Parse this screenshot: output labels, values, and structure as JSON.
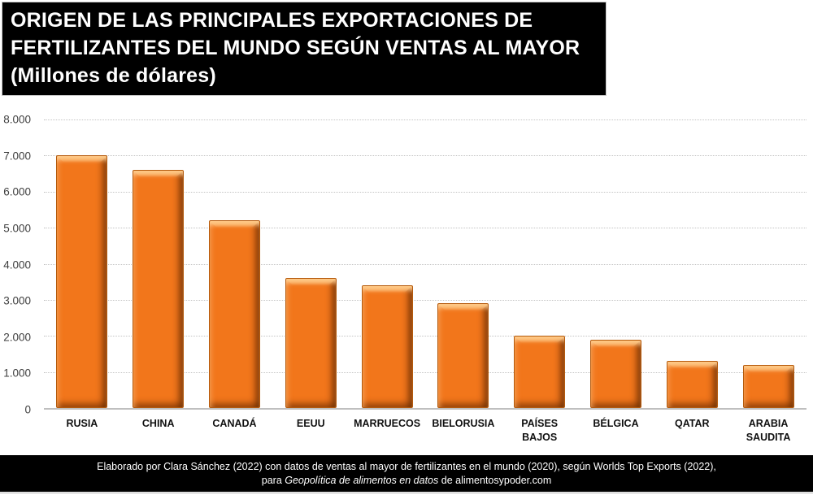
{
  "title_banner": {
    "lines": [
      "ORIGEN DE LAS PRINCIPALES EXPORTACIONES DE",
      "FERTILIZANTES DEL MUNDO SEGÚN VENTAS AL MAYOR",
      "(Millones de dólares)"
    ],
    "background": "#000000",
    "text_color": "#FFFFFF"
  },
  "chart_data": {
    "type": "bar",
    "title": "ORIGEN DE LAS PRINCIPALES EXPORTACIONES DE FERTILIZANTES DEL MUNDO SEGÚN VENTAS AL MAYOR (Millones de dólares)",
    "unit": "Millones de dólares",
    "categories": [
      "RUSIA",
      "CHINA",
      "CANADÁ",
      "EEUU",
      "MARRUECOS",
      "BIELORUSIA",
      "PAÍSES BAJOS",
      "BÉLGICA",
      "QATAR",
      "ARABIA SAUDITA"
    ],
    "values": [
      7000,
      6600,
      5200,
      3600,
      3400,
      2900,
      2000,
      1900,
      1300,
      1200
    ],
    "xlabel": "",
    "ylabel": "",
    "ylim": [
      0,
      8000
    ],
    "ytick_values": [
      8000,
      7000,
      6000,
      5000,
      4000,
      3000,
      2000,
      1000,
      0
    ],
    "ytick_labels": [
      "8.000",
      "7.000",
      "6.000",
      "5.000",
      "4.000",
      "3.000",
      "2.000",
      "1.000",
      "0"
    ],
    "grid": "horizontal-dotted",
    "legend_position": "none",
    "bar_color": "#F2761B",
    "bar_border_color": "#B55A0C",
    "bar_style": "3d-bevel"
  },
  "footer": {
    "line1": "Elaborado por Clara Sánchez (2022) con datos de ventas al mayor de fertilizantes en el mundo (2020), según Worlds Top Exports (2022),",
    "line2_prefix": "para ",
    "line2_italic": "Geopolítica de alimentos en datos",
    "line2_suffix": " de alimentosypoder.com",
    "background": "#000000",
    "text_color": "#FFFFFF"
  }
}
